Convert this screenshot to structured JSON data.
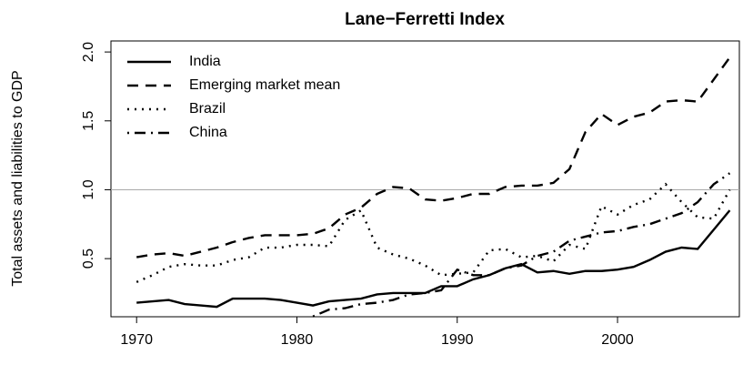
{
  "chart_data": {
    "type": "line",
    "title": "Lane−Ferretti Index",
    "y_label": "Total assets and liabilities to GDP",
    "x": [
      1970,
      1971,
      1972,
      1973,
      1974,
      1975,
      1976,
      1977,
      1978,
      1979,
      1980,
      1981,
      1982,
      1983,
      1984,
      1985,
      1986,
      1987,
      1988,
      1989,
      1990,
      1991,
      1992,
      1993,
      1994,
      1995,
      1996,
      1997,
      1998,
      1999,
      2000,
      2001,
      2002,
      2003,
      2004,
      2005,
      2006,
      2007
    ],
    "series": [
      {
        "name": "India",
        "color": "#000000",
        "line_style": "solid",
        "values": [
          0.18,
          0.19,
          0.2,
          0.17,
          0.16,
          0.15,
          0.21,
          0.21,
          0.21,
          0.2,
          0.18,
          0.16,
          0.19,
          0.2,
          0.21,
          0.24,
          0.25,
          0.25,
          0.25,
          0.3,
          0.3,
          0.35,
          0.38,
          0.43,
          0.46,
          0.4,
          0.41,
          0.39,
          0.41,
          0.41,
          0.42,
          0.44,
          0.49,
          0.55,
          0.58,
          0.57,
          0.71,
          0.85
        ]
      },
      {
        "name": "Emerging market mean",
        "color": "#000000",
        "line_style": "dashed",
        "values": [
          0.51,
          0.53,
          0.54,
          0.52,
          0.55,
          0.58,
          0.62,
          0.65,
          0.67,
          0.67,
          0.67,
          0.68,
          0.72,
          0.82,
          0.87,
          0.97,
          1.02,
          1.01,
          0.93,
          0.92,
          0.94,
          0.97,
          0.97,
          1.02,
          1.03,
          1.03,
          1.05,
          1.15,
          1.42,
          1.55,
          1.47,
          1.53,
          1.56,
          1.64,
          1.65,
          1.64,
          1.8,
          1.96
        ]
      },
      {
        "name": "Brazil",
        "color": "#000000",
        "line_style": "dotted",
        "values": [
          0.33,
          0.38,
          0.44,
          0.46,
          0.45,
          0.45,
          0.49,
          0.51,
          0.58,
          0.58,
          0.6,
          0.6,
          0.59,
          0.78,
          0.85,
          0.58,
          0.53,
          0.5,
          0.45,
          0.38,
          0.39,
          0.4,
          0.56,
          0.57,
          0.51,
          0.52,
          0.48,
          0.6,
          0.57,
          0.88,
          0.82,
          0.89,
          0.93,
          1.04,
          0.91,
          0.8,
          0.79,
          1.0
        ]
      },
      {
        "name": "China",
        "color": "#000000",
        "line_style": "dotdash",
        "values": [
          null,
          null,
          null,
          null,
          null,
          null,
          null,
          null,
          null,
          null,
          null,
          0.08,
          0.13,
          0.14,
          0.17,
          0.18,
          0.2,
          0.24,
          0.25,
          0.27,
          0.42,
          0.38,
          0.38,
          0.43,
          0.45,
          0.52,
          0.55,
          0.63,
          0.66,
          0.69,
          0.7,
          0.73,
          0.75,
          0.79,
          0.83,
          0.91,
          1.04,
          1.12
        ]
      }
    ],
    "xlim": [
      1968.4,
      2007.6
    ],
    "xticks": [
      1970,
      1980,
      1990,
      2000
    ],
    "ylim": [
      0.078,
      2.08
    ],
    "yticks": [
      0.5,
      {
        "value": 1,
        "label": "1.0"
      },
      1.5,
      {
        "value": 2,
        "label": "2.0"
      }
    ],
    "hline": 1,
    "hline_color": "#aaaaaa",
    "legend": "top-left"
  }
}
